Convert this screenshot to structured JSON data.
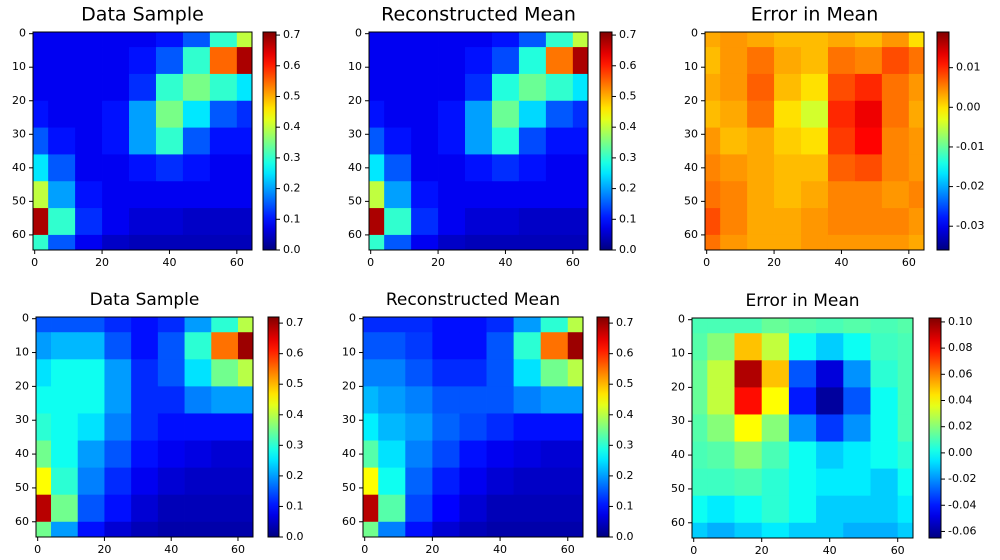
{
  "chart_data": [
    {
      "type": "heatmap",
      "title": "Data Sample",
      "colormap": "jet",
      "x": [
        0,
        8,
        16,
        24,
        32,
        40,
        48,
        56,
        64
      ],
      "y": [
        0,
        8,
        16,
        24,
        32,
        40,
        48,
        56,
        64
      ],
      "values": [
        [
          0.08,
          0.08,
          0.08,
          0.08,
          0.08,
          0.1,
          0.15,
          0.3,
          0.4
        ],
        [
          0.08,
          0.08,
          0.08,
          0.08,
          0.1,
          0.15,
          0.3,
          0.55,
          0.68
        ],
        [
          0.08,
          0.08,
          0.08,
          0.08,
          0.12,
          0.3,
          0.35,
          0.3,
          0.25
        ],
        [
          0.1,
          0.08,
          0.08,
          0.1,
          0.2,
          0.35,
          0.25,
          0.15,
          0.12
        ],
        [
          0.15,
          0.1,
          0.08,
          0.1,
          0.2,
          0.3,
          0.15,
          0.1,
          0.1
        ],
        [
          0.25,
          0.15,
          0.08,
          0.08,
          0.1,
          0.12,
          0.1,
          0.08,
          0.08
        ],
        [
          0.4,
          0.2,
          0.1,
          0.08,
          0.08,
          0.08,
          0.08,
          0.08,
          0.08
        ],
        [
          0.68,
          0.3,
          0.12,
          0.08,
          0.06,
          0.06,
          0.05,
          0.05,
          0.05
        ],
        [
          0.3,
          0.15,
          0.08,
          0.05,
          0.04,
          0.04,
          0.04,
          0.04,
          0.04
        ]
      ],
      "xlim": [
        -0.5,
        64.5
      ],
      "ylim": [
        64.5,
        -0.5
      ],
      "xticks": [
        0,
        20,
        40,
        60
      ],
      "yticks": [
        0,
        10,
        20,
        30,
        40,
        50,
        60
      ],
      "clim": [
        0,
        0.71
      ],
      "cticks": [
        {
          "value": 0,
          "label": "0.0"
        },
        0.1,
        0.2,
        0.3,
        0.4,
        0.5,
        0.6,
        0.7
      ]
    },
    {
      "type": "heatmap",
      "title": "Reconstructed Mean",
      "colormap": "jet",
      "x": [
        0,
        8,
        16,
        24,
        32,
        40,
        48,
        56,
        64
      ],
      "y": [
        0,
        8,
        16,
        24,
        32,
        40,
        48,
        56,
        64
      ],
      "values": [
        [
          0.08,
          0.08,
          0.08,
          0.08,
          0.08,
          0.1,
          0.15,
          0.3,
          0.4
        ],
        [
          0.08,
          0.08,
          0.08,
          0.08,
          0.1,
          0.14,
          0.29,
          0.54,
          0.68
        ],
        [
          0.08,
          0.08,
          0.08,
          0.08,
          0.12,
          0.29,
          0.34,
          0.3,
          0.25
        ],
        [
          0.1,
          0.08,
          0.08,
          0.1,
          0.2,
          0.34,
          0.24,
          0.15,
          0.12
        ],
        [
          0.15,
          0.1,
          0.08,
          0.1,
          0.2,
          0.29,
          0.14,
          0.1,
          0.1
        ],
        [
          0.25,
          0.15,
          0.08,
          0.08,
          0.1,
          0.12,
          0.1,
          0.08,
          0.08
        ],
        [
          0.4,
          0.2,
          0.1,
          0.08,
          0.08,
          0.08,
          0.08,
          0.08,
          0.08
        ],
        [
          0.68,
          0.3,
          0.12,
          0.08,
          0.06,
          0.06,
          0.05,
          0.05,
          0.05
        ],
        [
          0.3,
          0.15,
          0.08,
          0.05,
          0.04,
          0.04,
          0.04,
          0.04,
          0.04
        ]
      ],
      "xlim": [
        -0.5,
        64.5
      ],
      "ylim": [
        64.5,
        -0.5
      ],
      "xticks": [
        0,
        20,
        40,
        60
      ],
      "yticks": [
        0,
        10,
        20,
        30,
        40,
        50,
        60
      ],
      "clim": [
        0,
        0.71
      ],
      "cticks": [
        {
          "value": 0,
          "label": "0.0"
        },
        0.1,
        0.2,
        0.3,
        0.4,
        0.5,
        0.6,
        0.7
      ]
    },
    {
      "type": "heatmap",
      "title": "Error in Mean",
      "colormap": "jet",
      "x": [
        0,
        8,
        16,
        24,
        32,
        40,
        48,
        56,
        64
      ],
      "y": [
        0,
        8,
        16,
        24,
        32,
        40,
        48,
        56,
        64
      ],
      "values": [
        [
          0.003,
          0.004,
          0.003,
          0.002,
          0.002,
          0.003,
          0.002,
          0.004,
          0.0
        ],
        [
          0.002,
          0.004,
          0.006,
          0.003,
          0.002,
          0.006,
          0.005,
          0.008,
          0.006
        ],
        [
          0.003,
          0.004,
          0.007,
          0.002,
          0.0,
          0.008,
          0.01,
          0.006,
          0.004
        ],
        [
          0.002,
          0.003,
          0.006,
          0.0,
          -0.004,
          0.01,
          0.013,
          0.006,
          0.003
        ],
        [
          0.004,
          0.002,
          0.003,
          0.001,
          0.0,
          0.009,
          0.012,
          0.005,
          0.004
        ],
        [
          0.005,
          0.004,
          0.003,
          0.002,
          0.002,
          0.007,
          0.008,
          0.005,
          0.004
        ],
        [
          0.006,
          0.005,
          0.003,
          0.002,
          0.003,
          0.005,
          0.005,
          0.004,
          0.005
        ],
        [
          0.008,
          0.005,
          0.003,
          0.003,
          0.004,
          0.005,
          0.005,
          0.005,
          0.004
        ],
        [
          0.006,
          0.004,
          0.003,
          0.003,
          0.004,
          0.004,
          0.004,
          0.004,
          0.003
        ]
      ],
      "xlim": [
        -0.5,
        64.5
      ],
      "ylim": [
        64.5,
        -0.5
      ],
      "xticks": [
        0,
        20,
        40,
        60
      ],
      "yticks": [
        0,
        10,
        20,
        30,
        40,
        50,
        60
      ],
      "clim": [
        -0.036,
        0.019
      ],
      "cticks": [
        0.01,
        {
          "value": 0,
          "label": "0.00"
        },
        -0.01,
        -0.02,
        -0.03
      ]
    },
    {
      "type": "heatmap",
      "title": "Data Sample",
      "colormap": "jet",
      "x": [
        0,
        8,
        16,
        24,
        32,
        40,
        48,
        56,
        64
      ],
      "y": [
        0,
        8,
        16,
        24,
        32,
        40,
        48,
        56,
        64
      ],
      "values": [
        [
          0.15,
          0.15,
          0.15,
          0.12,
          0.1,
          0.12,
          0.2,
          0.3,
          0.4
        ],
        [
          0.2,
          0.22,
          0.22,
          0.15,
          0.1,
          0.15,
          0.3,
          0.55,
          0.7
        ],
        [
          0.25,
          0.28,
          0.28,
          0.2,
          0.12,
          0.15,
          0.25,
          0.35,
          0.4
        ],
        [
          0.28,
          0.28,
          0.28,
          0.2,
          0.12,
          0.12,
          0.18,
          0.2,
          0.2
        ],
        [
          0.3,
          0.28,
          0.25,
          0.18,
          0.12,
          0.1,
          0.1,
          0.1,
          0.1
        ],
        [
          0.35,
          0.28,
          0.2,
          0.15,
          0.1,
          0.08,
          0.07,
          0.06,
          0.06
        ],
        [
          0.45,
          0.3,
          0.18,
          0.12,
          0.08,
          0.06,
          0.05,
          0.05,
          0.05
        ],
        [
          0.68,
          0.35,
          0.15,
          0.1,
          0.06,
          0.04,
          0.04,
          0.04,
          0.04
        ],
        [
          0.35,
          0.2,
          0.1,
          0.06,
          0.04,
          0.03,
          0.03,
          0.03,
          0.03
        ]
      ],
      "xlim": [
        -0.5,
        64.5
      ],
      "ylim": [
        64.5,
        -0.5
      ],
      "xticks": [
        0,
        20,
        40,
        60
      ],
      "yticks": [
        0,
        10,
        20,
        30,
        40,
        50,
        60
      ],
      "clim": [
        0,
        0.72
      ],
      "cticks": [
        {
          "value": 0,
          "label": "0.0"
        },
        0.1,
        0.2,
        0.3,
        0.4,
        0.5,
        0.6,
        0.7
      ]
    },
    {
      "type": "heatmap",
      "title": "Reconstructed Mean",
      "colormap": "jet",
      "x": [
        0,
        8,
        16,
        24,
        32,
        40,
        48,
        56,
        64
      ],
      "y": [
        0,
        8,
        16,
        24,
        32,
        40,
        48,
        56,
        64
      ],
      "values": [
        [
          0.12,
          0.12,
          0.12,
          0.1,
          0.1,
          0.12,
          0.2,
          0.3,
          0.4
        ],
        [
          0.15,
          0.15,
          0.13,
          0.1,
          0.1,
          0.15,
          0.3,
          0.55,
          0.7
        ],
        [
          0.18,
          0.18,
          0.15,
          0.12,
          0.12,
          0.15,
          0.25,
          0.35,
          0.4
        ],
        [
          0.22,
          0.2,
          0.18,
          0.15,
          0.15,
          0.15,
          0.18,
          0.2,
          0.2
        ],
        [
          0.26,
          0.22,
          0.2,
          0.16,
          0.14,
          0.12,
          0.1,
          0.1,
          0.1
        ],
        [
          0.33,
          0.25,
          0.18,
          0.14,
          0.1,
          0.08,
          0.07,
          0.06,
          0.06
        ],
        [
          0.45,
          0.28,
          0.16,
          0.11,
          0.08,
          0.06,
          0.05,
          0.05,
          0.05
        ],
        [
          0.68,
          0.33,
          0.14,
          0.09,
          0.06,
          0.04,
          0.04,
          0.04,
          0.04
        ],
        [
          0.35,
          0.18,
          0.1,
          0.06,
          0.04,
          0.03,
          0.03,
          0.03,
          0.03
        ]
      ],
      "xlim": [
        -0.5,
        64.5
      ],
      "ylim": [
        64.5,
        -0.5
      ],
      "xticks": [
        0,
        20,
        40,
        60
      ],
      "yticks": [
        0,
        10,
        20,
        30,
        40,
        50,
        60
      ],
      "clim": [
        0,
        0.72
      ],
      "cticks": [
        {
          "value": 0,
          "label": "0.0"
        },
        0.1,
        0.2,
        0.3,
        0.4,
        0.5,
        0.6,
        0.7
      ]
    },
    {
      "type": "heatmap",
      "title": "Error in Mean",
      "colormap": "jet",
      "x": [
        0,
        8,
        16,
        24,
        32,
        40,
        48,
        56,
        64
      ],
      "y": [
        0,
        8,
        16,
        24,
        32,
        40,
        48,
        56,
        64
      ],
      "values": [
        [
          0.01,
          0.01,
          0.01,
          0.015,
          0.012,
          0.01,
          0.012,
          0.01,
          0.012
        ],
        [
          0.012,
          0.02,
          0.05,
          0.03,
          0.0,
          -0.01,
          0.0,
          0.008,
          0.01
        ],
        [
          0.015,
          0.03,
          0.095,
          0.05,
          -0.03,
          -0.05,
          -0.02,
          0.005,
          0.01
        ],
        [
          0.015,
          0.03,
          0.08,
          0.04,
          -0.04,
          -0.06,
          -0.03,
          0.0,
          0.01
        ],
        [
          0.012,
          0.02,
          0.04,
          0.02,
          -0.02,
          -0.035,
          -0.02,
          0.0,
          0.01
        ],
        [
          0.01,
          0.012,
          0.02,
          0.01,
          0.0,
          -0.01,
          -0.005,
          0.0,
          0.005
        ],
        [
          0.008,
          0.008,
          0.01,
          0.005,
          0.0,
          -0.005,
          -0.005,
          -0.01,
          0.0
        ],
        [
          0.0,
          -0.005,
          0.0,
          0.005,
          0.0,
          -0.01,
          -0.01,
          -0.01,
          -0.005
        ],
        [
          -0.01,
          -0.015,
          -0.01,
          -0.005,
          -0.01,
          -0.01,
          -0.015,
          -0.015,
          -0.01
        ]
      ],
      "xlim": [
        -0.5,
        64.5
      ],
      "ylim": [
        64.5,
        -0.5
      ],
      "xticks": [
        0,
        20,
        40,
        60
      ],
      "yticks": [
        0,
        10,
        20,
        30,
        40,
        50,
        60
      ],
      "clim": [
        -0.065,
        0.103
      ],
      "cticks": [
        {
          "value": 0.1,
          "label": "0.10"
        },
        0.08,
        0.06,
        0.04,
        0.02,
        {
          "value": 0,
          "label": "0.00"
        },
        -0.02,
        -0.04,
        -0.06
      ]
    }
  ]
}
